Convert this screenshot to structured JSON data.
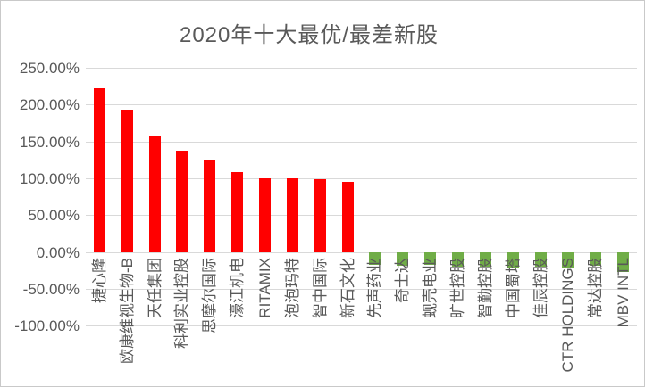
{
  "window": {
    "background": "#ffffff",
    "border_color": "#c9c9c9"
  },
  "chart_data": {
    "type": "bar",
    "title": "2020年十大最优/最差新股",
    "categories": [
      "捷心隆",
      "欧康维视生物-B",
      "天任集团",
      "科利实业控股",
      "思摩尔国际",
      "濠江机电",
      "RITAMIX",
      "泡泡玛特",
      "智中国际",
      "新石文化",
      "先声药业",
      "奇士达",
      "蚬壳电业",
      "旷世控股",
      "智勤控股",
      "中国蜀塔",
      "佳辰控股",
      "CTR HOLDINGS",
      "常达控股",
      "MBV INTL"
    ],
    "values": [
      222,
      193,
      157,
      137,
      125,
      108,
      100,
      100,
      99,
      95,
      -17,
      -19,
      -17,
      -20,
      -20,
      -21,
      -20,
      -22,
      -18,
      -27
    ],
    "value_unit": "%",
    "y_tick_labels": [
      "250.00%",
      "200.00%",
      "150.00%",
      "100.00%",
      "50.00%",
      "0.00%",
      "-50.00%",
      "-100.00%"
    ],
    "y_tick_values": [
      250,
      200,
      150,
      100,
      50,
      0,
      -50,
      -100
    ],
    "ylim": [
      -100,
      250
    ],
    "xlabel": "",
    "ylabel": "",
    "grid": true,
    "legend": "none",
    "positive_color": "#ff0000",
    "negative_color": "#70ad47",
    "text_color": "#595959",
    "gridline_color": "#d9d9d9"
  }
}
